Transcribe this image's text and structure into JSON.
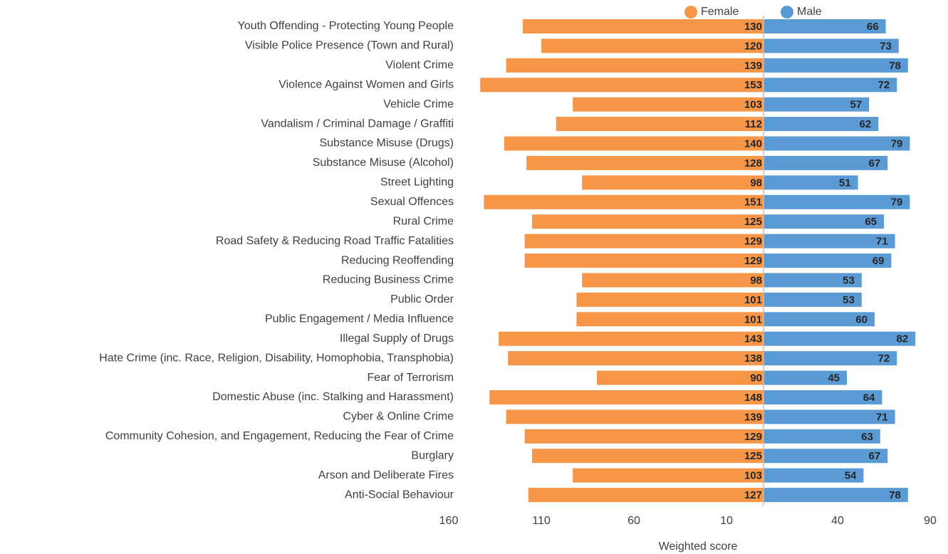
{
  "chart_data": {
    "type": "butterfly-bar",
    "x_axis_label": "Weighted score",
    "categories": [
      "Youth Offending - Protecting Young People",
      "Visible Police Presence (Town and Rural)",
      "Violent Crime",
      "Violence Against Women and Girls",
      "Vehicle Crime",
      "Vandalism / Criminal Damage / Graffiti",
      "Substance Misuse (Drugs)",
      "Substance Misuse (Alcohol)",
      "Street Lighting",
      "Sexual Offences",
      "Rural Crime",
      "Road Safety & Reducing Road Traffic Fatalities",
      "Reducing Reoffending",
      "Reducing Business Crime",
      "Public Order",
      "Public Engagement / Media Influence",
      "Illegal Supply of Drugs",
      "Hate Crime (inc. Race, Religion, Disability, Homophobia, Transphobia)",
      "Fear of Terrorism",
      "Domestic Abuse (inc. Stalking and Harassment)",
      "Cyber & Online Crime",
      "Community Cohesion, and Engagement, Reducing the Fear of Crime",
      "Burglary",
      "Arson and Deliberate Fires",
      "Anti-Social Behaviour"
    ],
    "series": [
      {
        "name": "Female",
        "color": "#f79646",
        "side": "left",
        "values": [
          130,
          120,
          139,
          153,
          103,
          112,
          140,
          128,
          98,
          151,
          125,
          129,
          129,
          98,
          101,
          101,
          143,
          138,
          90,
          148,
          139,
          129,
          125,
          103,
          127
        ]
      },
      {
        "name": "Male",
        "color": "#5b9bd5",
        "side": "right",
        "values": [
          66,
          73,
          78,
          72,
          57,
          62,
          79,
          67,
          51,
          79,
          65,
          71,
          69,
          53,
          53,
          60,
          82,
          72,
          45,
          64,
          71,
          63,
          67,
          54,
          78
        ]
      }
    ],
    "left_xlim": [
      0,
      160
    ],
    "left_xticks": [
      160,
      110,
      60,
      10
    ],
    "right_xlim": [
      0,
      90
    ],
    "right_xticks": [
      40,
      90
    ],
    "legend": "top"
  }
}
